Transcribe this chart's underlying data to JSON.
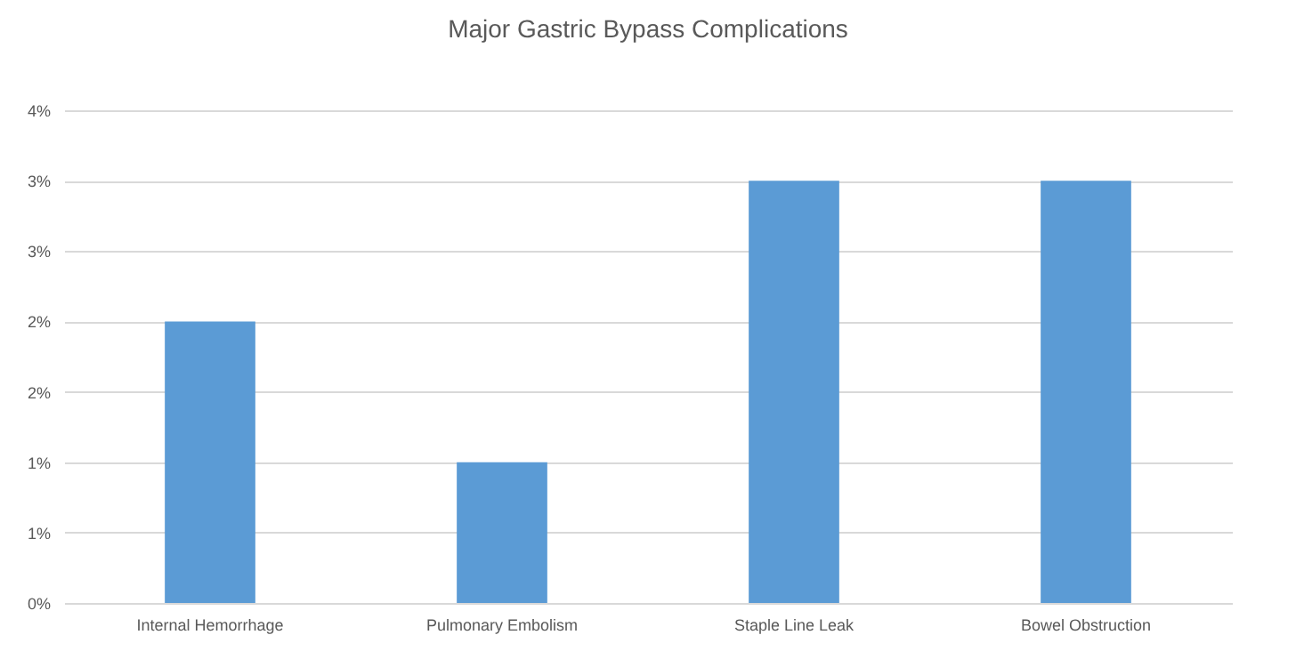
{
  "chart_data": {
    "type": "bar",
    "title": "Major Gastric Bypass Complications",
    "categories": [
      "Internal Hemorrhage",
      "Pulmonary Embolism",
      "Staple Line Leak",
      "Bowel Obstruction"
    ],
    "values": [
      2.0,
      1.0,
      3.0,
      3.0
    ],
    "color": "#5b9bd5",
    "ylim": [
      0,
      3.5
    ],
    "yticks": [
      {
        "value": 0,
        "label": "0%"
      },
      {
        "value": 0.5,
        "label": "1%"
      },
      {
        "value": 1,
        "label": "1%"
      },
      {
        "value": 1.5,
        "label": "2%"
      },
      {
        "value": 2,
        "label": "2%"
      },
      {
        "value": 2.5,
        "label": "3%"
      },
      {
        "value": 3,
        "label": "3%"
      },
      {
        "value": 3.5,
        "label": "4%"
      }
    ],
    "grid": "y"
  }
}
